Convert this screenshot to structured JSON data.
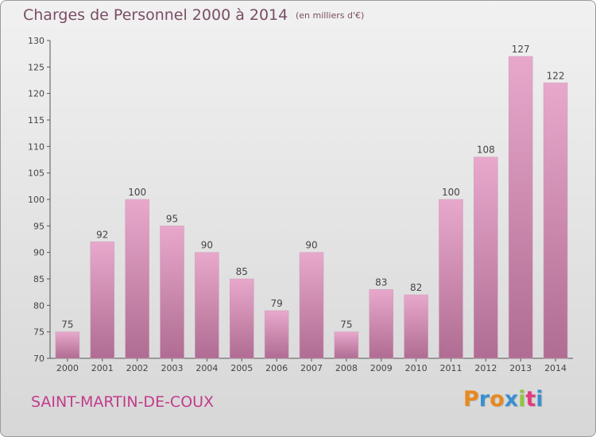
{
  "header": {
    "title": "Charges de Personnel 2000 à 2014",
    "subtitle": "(en milliers d'€)"
  },
  "footer": {
    "commune": "SAINT-MARTIN-DE-COUX",
    "logo_letters": [
      "P",
      "r",
      "o",
      "x",
      "i",
      "t",
      "i"
    ],
    "logo_colors": [
      "#e8891e",
      "#3a8fd1",
      "#e8891e",
      "#3a8fd1",
      "#8dc63f",
      "#e23c7e",
      "#3a8fd1"
    ]
  },
  "colors": {
    "bar_top": "#e8a8cc",
    "bar_bottom": "#b06c92",
    "text": "#7a4d64",
    "accent": "#c23c8b"
  },
  "chart_data": {
    "type": "bar",
    "title": "Charges de Personnel 2000 à 2014",
    "subtitle": "(en milliers d'€)",
    "categories": [
      "2000",
      "2001",
      "2002",
      "2003",
      "2004",
      "2005",
      "2006",
      "2007",
      "2008",
      "2009",
      "2010",
      "2011",
      "2012",
      "2013",
      "2014"
    ],
    "values": [
      75,
      92,
      100,
      95,
      90,
      85,
      79,
      90,
      75,
      83,
      82,
      100,
      108,
      127,
      122
    ],
    "ylim": [
      70,
      130
    ],
    "yticks": [
      70,
      75,
      80,
      85,
      90,
      95,
      100,
      105,
      110,
      115,
      120,
      125,
      130
    ],
    "grid": false,
    "legend": "none"
  }
}
